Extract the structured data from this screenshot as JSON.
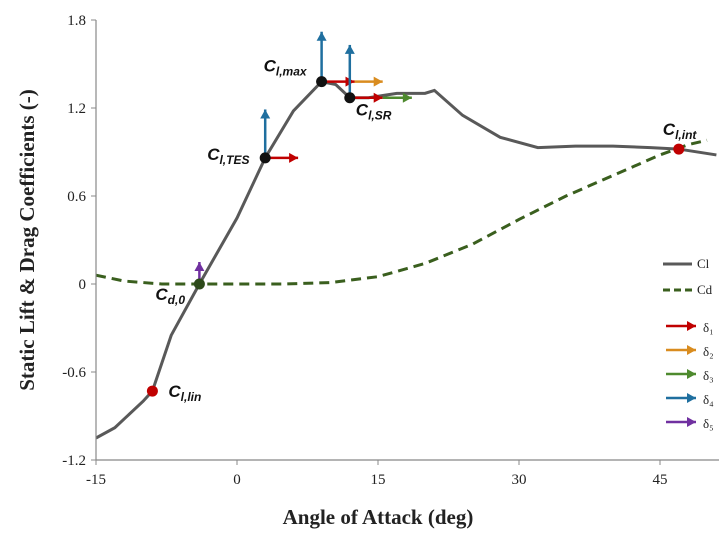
{
  "chart_data": {
    "type": "line",
    "xlabel": "Angle of Attack (deg)",
    "ylabel": "Static Lift & Drag Coefficients (-)",
    "xlim": [
      -15,
      51
    ],
    "ylim": [
      -1.2,
      1.8
    ],
    "xticks": [
      -15,
      0,
      15,
      30,
      45
    ],
    "yticks": [
      -1.2,
      -0.6,
      0,
      0.6,
      1.2,
      1.8
    ],
    "series": [
      {
        "name": "Cl",
        "color": "#595959",
        "dash": false,
        "x": [
          -15,
          -13,
          -10,
          -9,
          -7,
          -4,
          0,
          3,
          6,
          9,
          10.5,
          12,
          14,
          17,
          20,
          21,
          24,
          28,
          32,
          36,
          40,
          44,
          47,
          51
        ],
        "values": [
          -1.05,
          -0.98,
          -0.8,
          -0.73,
          -0.35,
          0,
          0.45,
          0.86,
          1.18,
          1.38,
          1.36,
          1.27,
          1.27,
          1.3,
          1.3,
          1.32,
          1.15,
          1.0,
          0.93,
          0.94,
          0.94,
          0.93,
          0.92,
          0.88
        ]
      },
      {
        "name": "Cd",
        "color": "#3a5f1e",
        "dash": true,
        "x": [
          -15,
          -12,
          -8,
          -4,
          0,
          5,
          10,
          15,
          20,
          25,
          30,
          35,
          40,
          45,
          48,
          50
        ],
        "values": [
          0.06,
          0.02,
          0.0,
          0.0,
          0.0,
          0.0,
          0.01,
          0.05,
          0.14,
          0.27,
          0.44,
          0.6,
          0.74,
          0.88,
          0.95,
          0.98
        ]
      }
    ],
    "points": [
      {
        "x": -9,
        "y": -0.73,
        "label": "C",
        "subscript": "l,lin",
        "color": "#c00000"
      },
      {
        "x": -4,
        "y": 0,
        "label": "C",
        "subscript": "d,0",
        "color": "#2d4a1a"
      },
      {
        "x": 3,
        "y": 0.86,
        "label": "C",
        "subscript": "l,TES",
        "color": "#111111"
      },
      {
        "x": 9,
        "y": 1.38,
        "label": "C",
        "subscript": "l,max",
        "color": "#111111"
      },
      {
        "x": 12,
        "y": 1.27,
        "label": "C",
        "subscript": "l,SR",
        "color": "#111111"
      },
      {
        "x": 47,
        "y": 0.92,
        "label": "C",
        "subscript": "l,int",
        "color": "#c00000"
      }
    ],
    "deltas": [
      {
        "name": "δ₁",
        "color": "#c00000",
        "arrows": [
          {
            "x": [
              3,
              6.5
            ],
            "y": [
              0.86,
              0.86
            ]
          },
          {
            "x": [
              9,
              12.5
            ],
            "y": [
              1.38,
              1.38
            ]
          },
          {
            "x": [
              12,
              15.5
            ],
            "y": [
              1.27,
              1.27
            ]
          }
        ]
      },
      {
        "name": "δ₂",
        "color": "#d98c1f",
        "arrows": [
          {
            "x": [
              12.5,
              15.5
            ],
            "y": [
              1.38,
              1.38
            ]
          }
        ]
      },
      {
        "name": "δ₃",
        "color": "#4e8a2e",
        "arrows": [
          {
            "x": [
              15.5,
              18.6
            ],
            "y": [
              1.27,
              1.27
            ]
          }
        ]
      },
      {
        "name": "δ₄",
        "color": "#1f6f9f",
        "arrows": [
          {
            "x": [
              3,
              3
            ],
            "y": [
              0.86,
              1.19
            ]
          },
          {
            "x": [
              9,
              9
            ],
            "y": [
              1.38,
              1.72
            ]
          },
          {
            "x": [
              12,
              12
            ],
            "y": [
              1.27,
              1.63
            ]
          }
        ]
      },
      {
        "name": "δ₅",
        "color": "#7030a0",
        "arrows": [
          {
            "x": [
              -4,
              -4
            ],
            "y": [
              0,
              0.15
            ]
          }
        ]
      }
    ]
  }
}
